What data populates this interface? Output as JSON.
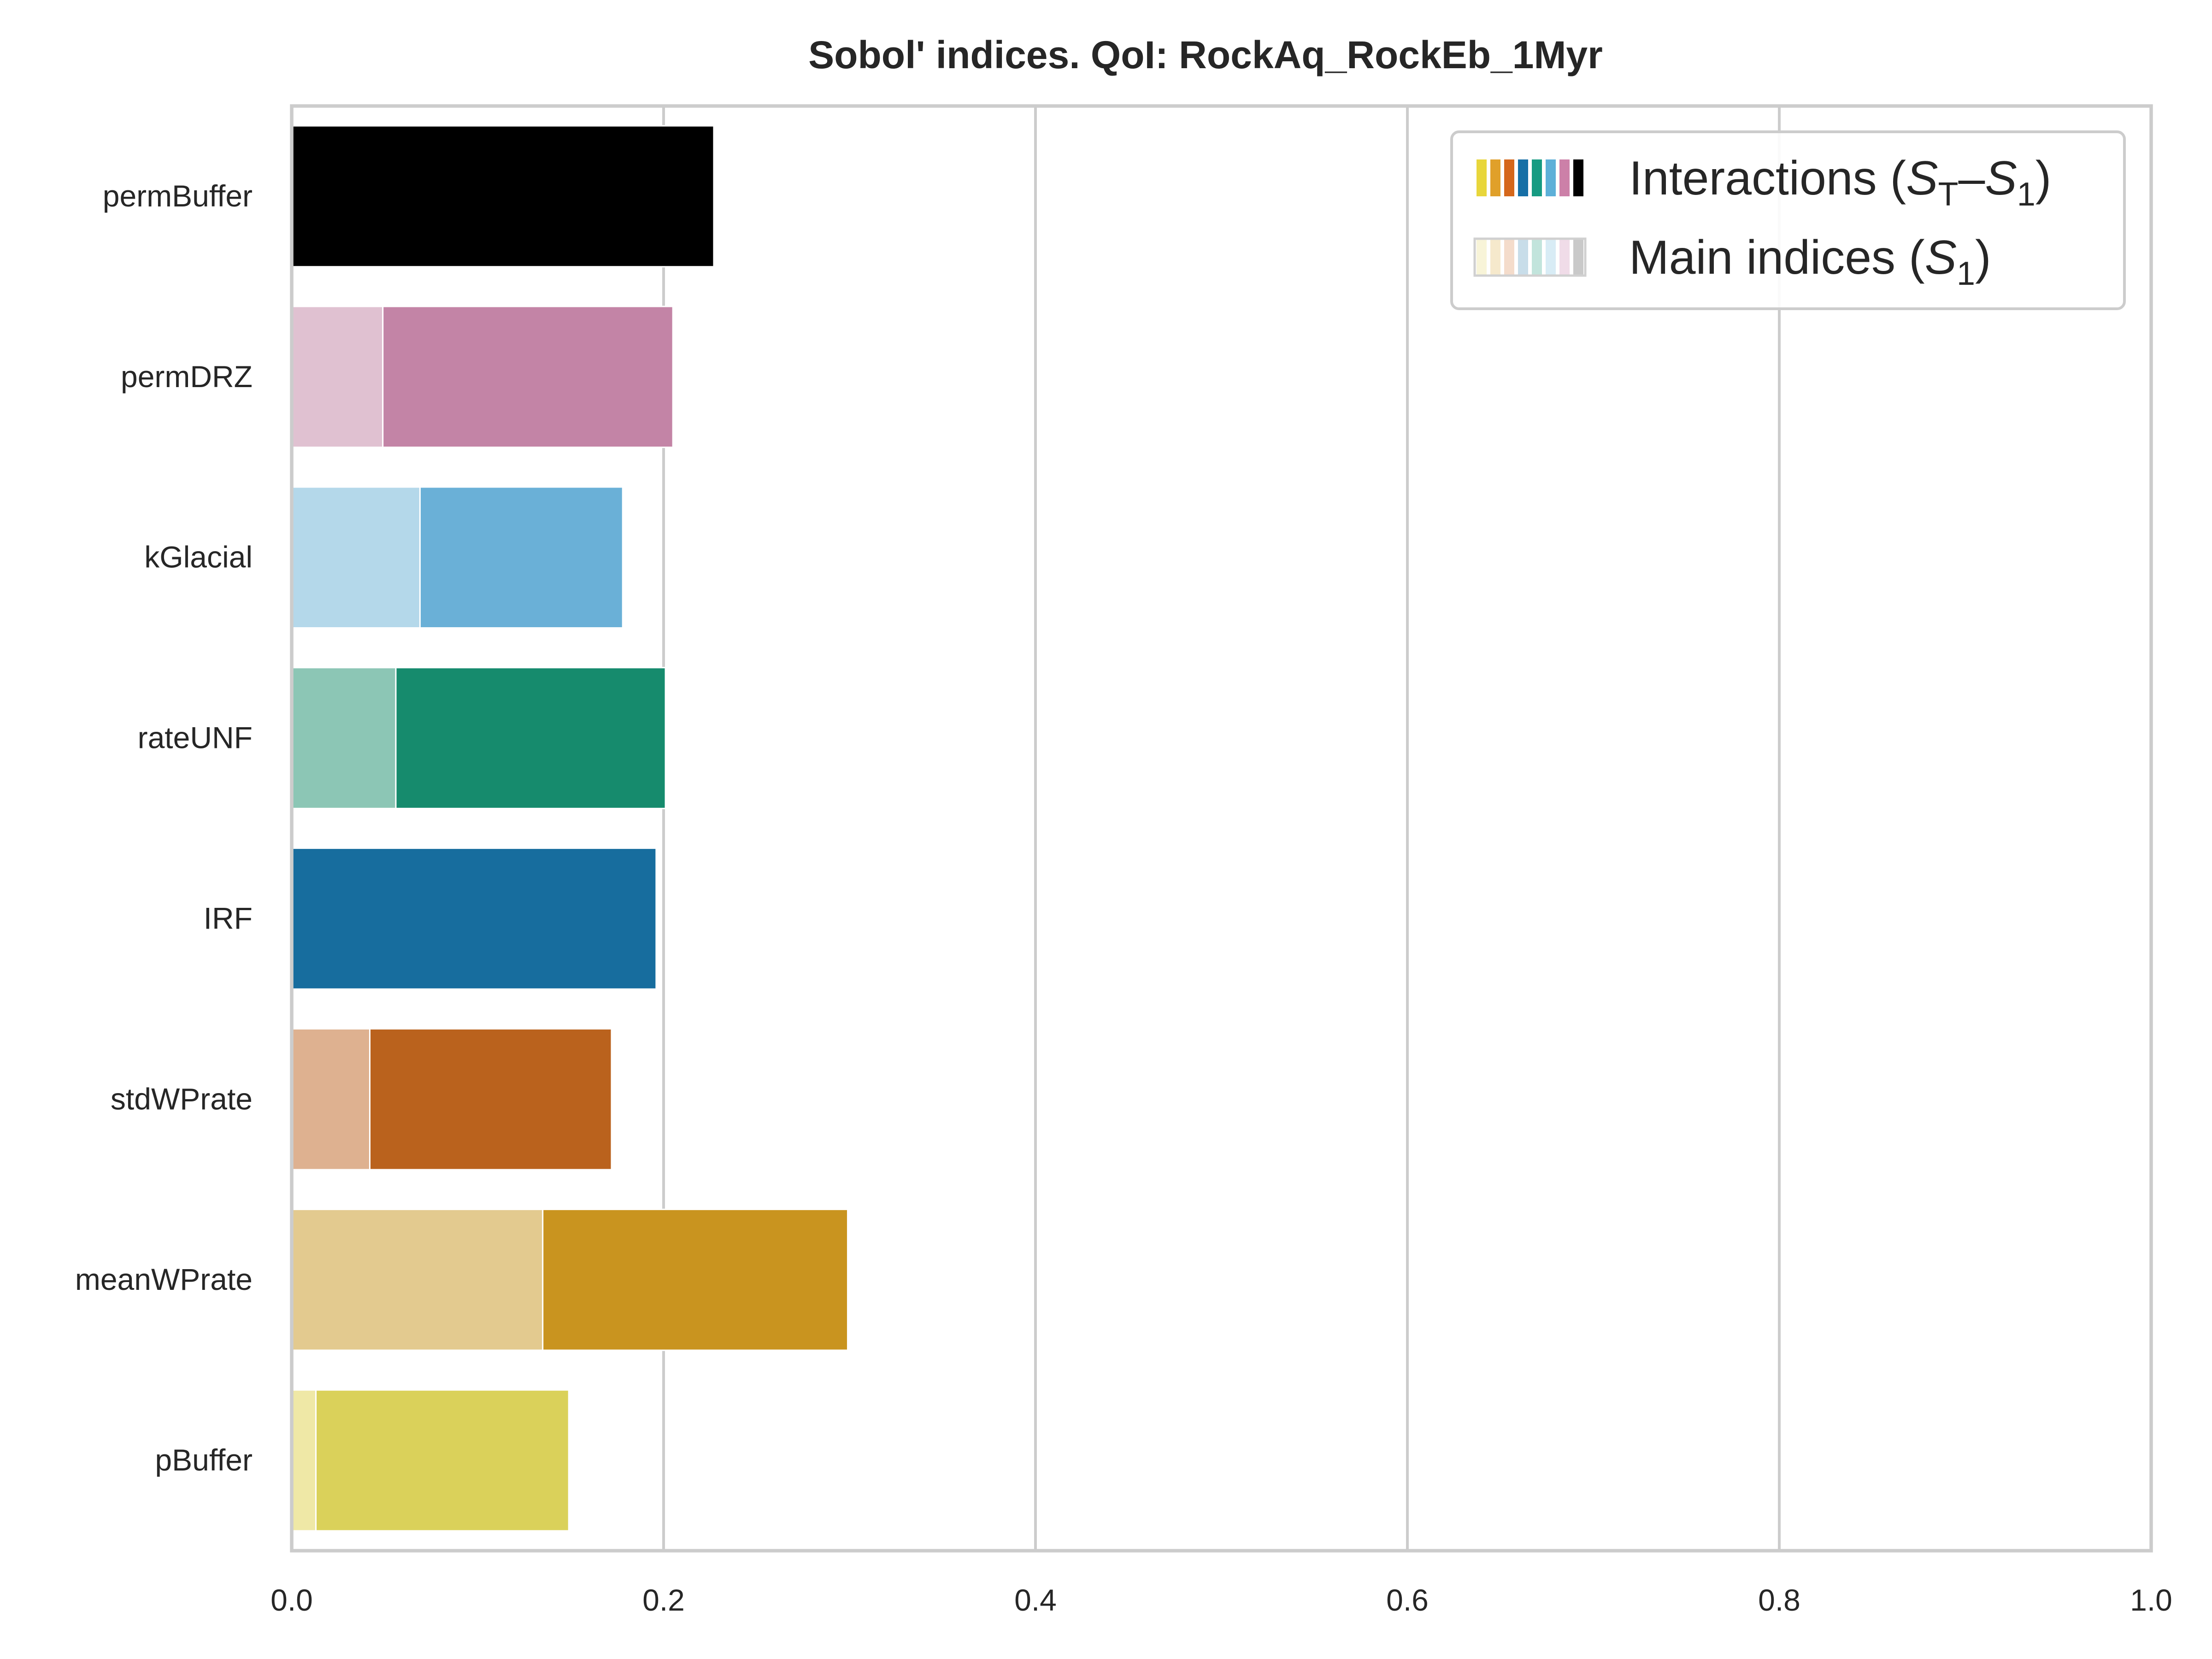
{
  "chart_data": {
    "type": "bar",
    "orientation": "horizontal",
    "stacked": true,
    "title": "Sobol' indices. QoI: RockAq_RockEb_1Myr",
    "xlabel": "",
    "ylabel": "",
    "xlim": [
      0,
      1
    ],
    "xticks": [
      "0.0",
      "0.2",
      "0.4",
      "0.6",
      "0.8",
      "1.0"
    ],
    "grid": "vertical",
    "legend_position": "top-right",
    "categories": [
      "permBuffer",
      "permDRZ",
      "kGlacial",
      "rateUNF",
      "IRF",
      "stdWPrate",
      "meanWPrate",
      "pBuffer"
    ],
    "series": [
      {
        "name": "Main indices (S1)",
        "values": [
          0.0,
          0.049,
          0.069,
          0.056,
          0.0,
          0.042,
          0.135,
          0.013
        ],
        "colors": [
          "#d9d9d9",
          "#e0c1d1",
          "#b4d8ea",
          "#8cc6b5",
          "#a8c8dc",
          "#deb190",
          "#e3ca8f",
          "#efe8a6"
        ]
      },
      {
        "name": "Interactions (ST−S1)",
        "values": [
          0.227,
          0.156,
          0.109,
          0.145,
          0.196,
          0.13,
          0.164,
          0.136
        ],
        "colors": [
          "#000000",
          "#c384a6",
          "#6ab0d7",
          "#168b6d",
          "#176d9e",
          "#ba621d",
          "#c9941f",
          "#dad15a"
        ]
      }
    ],
    "legend": [
      {
        "label": "Interactions (",
        "math_main": "S",
        "math_sub": "T",
        "math_sep": "–",
        "math_main2": "S",
        "math_sub2": "1",
        "label_end": ")",
        "swatches": [
          "#e8d63b",
          "#e0a02a",
          "#d5671b",
          "#166fa6",
          "#169b82",
          "#5db0d8",
          "#cc80a8",
          "#000000"
        ]
      },
      {
        "label": "Main indices (",
        "math_main": "S",
        "math_sub": "1",
        "label_end": ")",
        "swatches": [
          "#f8f4d8",
          "#f6e9cc",
          "#f4dccb",
          "#c8dde9",
          "#c2e4dc",
          "#d8ecf5",
          "#f0dce8",
          "#c9c9c9"
        ]
      }
    ]
  }
}
